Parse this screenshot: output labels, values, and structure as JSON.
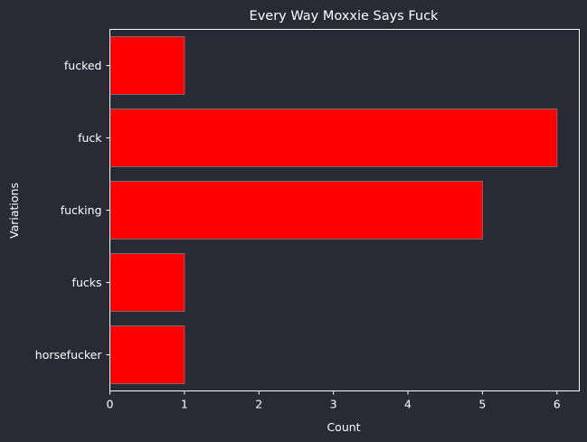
{
  "colors": {
    "background": "#282a36",
    "bar_fill": "#ff0000",
    "bar_edge": "#6e6e6e",
    "axis": "#ffffff",
    "text": "#ffffff"
  },
  "chart_data": {
    "type": "bar",
    "orientation": "horizontal",
    "title": "Every Way Moxxie Says Fuck",
    "xlabel": "Count",
    "ylabel": "Variations",
    "categories": [
      "fucked",
      "fuck",
      "fucking",
      "fucks",
      "horsefucker"
    ],
    "values": [
      1,
      6,
      5,
      1,
      1
    ],
    "xlim": [
      0,
      6.3
    ],
    "xticks": [
      0,
      1,
      2,
      3,
      4,
      5,
      6
    ],
    "grid": false,
    "legend": "none"
  }
}
